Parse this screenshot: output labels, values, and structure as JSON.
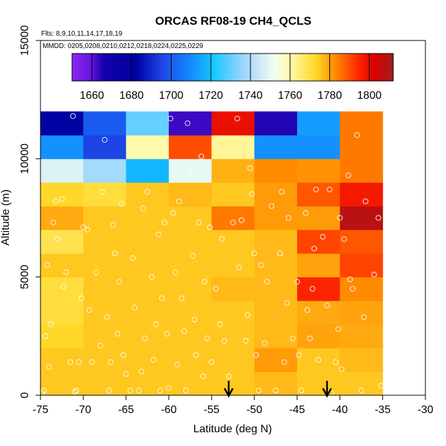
{
  "chart_data": {
    "type": "heatmap",
    "title": "ORCAS RF08-19 CH4_QCLS",
    "annotation_flights": "Flts: 8,9,10,11,14,17,18,19",
    "annotation_dates": "MMDD: 0205,0208,0210,0212,0218,0224,0225,0229",
    "xlabel": "Latitude (deg N)",
    "ylabel": "Altitude (m)",
    "xlim": [
      -75,
      -30
    ],
    "ylim": [
      0,
      15000
    ],
    "x_ticks": [
      -75,
      -70,
      -65,
      -60,
      -55,
      -50,
      -45,
      -40,
      -35,
      -30
    ],
    "y_ticks": [
      0,
      5000,
      10000,
      15000
    ],
    "colorbar": {
      "range": [
        1650,
        1812
      ],
      "ticks": [
        1660,
        1680,
        1700,
        1720,
        1740,
        1760,
        1780,
        1800
      ]
    },
    "x_bin_edges": [
      -75,
      -70,
      -65,
      -60,
      -55,
      -50,
      -45,
      -40,
      -35
    ],
    "y_bin_edges": [
      0,
      1000,
      2000,
      3000,
      4000,
      5000,
      6000,
      7000,
      8000,
      9000,
      10000,
      11000,
      12000
    ],
    "grid_values": [
      [
        1775,
        1775,
        1775,
        1775,
        1775,
        1777,
        1775,
        1775
      ],
      [
        1775,
        1775,
        1775,
        1775,
        1775,
        1781,
        1775,
        1777
      ],
      [
        1773,
        1775,
        1775,
        1775,
        1775,
        1777,
        1780,
        1779
      ],
      [
        1771,
        1775,
        1775,
        1775,
        1775,
        1777,
        1779,
        1780
      ],
      [
        1771,
        1775,
        1775,
        1775,
        1777,
        1777,
        1795,
        1783
      ],
      [
        1775,
        1775,
        1775,
        1775,
        1775,
        1777,
        1780,
        1791
      ],
      [
        1769,
        1775,
        1775,
        1775,
        1775,
        1777,
        1791,
        1789
      ],
      [
        1779,
        1775,
        1775,
        1775,
        1785,
        1781,
        1781,
        1808
      ],
      [
        1773,
        1771,
        1775,
        1777,
        1775,
        1781,
        1789,
        1797
      ],
      [
        1748,
        1738,
        1718,
        1750,
        1778,
        1783,
        1782,
        1785
      ],
      [
        1711,
        1695,
        1760,
        1790,
        1762,
        1711,
        1711,
        1785
      ],
      [
        1683,
        1700,
        1730,
        1663,
        1799,
        1665,
        1713,
        1785
      ]
    ],
    "sample_points": [
      [
        -74.8,
        100
      ],
      [
        -74.6,
        200
      ],
      [
        -74.4,
        2500
      ],
      [
        -74.2,
        5500
      ],
      [
        -74.0,
        1200
      ],
      [
        -73.8,
        3000
      ],
      [
        -73.5,
        7300
      ],
      [
        -73.2,
        8200
      ],
      [
        -73.0,
        6600
      ],
      [
        -72.5,
        8300
      ],
      [
        -72.3,
        4600
      ],
      [
        -72.0,
        5200
      ],
      [
        -71.5,
        1400
      ],
      [
        -71.2,
        11800
      ],
      [
        -71.0,
        150
      ],
      [
        -70.8,
        200
      ],
      [
        -70.5,
        1400
      ],
      [
        -70.2,
        4100
      ],
      [
        -70.0,
        7100
      ],
      [
        -69.5,
        7000
      ],
      [
        -69.3,
        3600
      ],
      [
        -69.0,
        1400
      ],
      [
        -68.5,
        5200
      ],
      [
        -68.0,
        2100
      ],
      [
        -67.8,
        8600
      ],
      [
        -67.5,
        10800
      ],
      [
        -67.2,
        3300
      ],
      [
        -67.0,
        200
      ],
      [
        -66.8,
        1400
      ],
      [
        -66.5,
        7200
      ],
      [
        -66.3,
        6000
      ],
      [
        -66.0,
        2600
      ],
      [
        -65.8,
        4800
      ],
      [
        -65.5,
        8100
      ],
      [
        -65.3,
        1700
      ],
      [
        -65.0,
        900
      ],
      [
        -64.5,
        200
      ],
      [
        -64.2,
        5800
      ],
      [
        -64.0,
        3700
      ],
      [
        -63.5,
        200
      ],
      [
        -63.2,
        1000
      ],
      [
        -63.0,
        7900
      ],
      [
        -62.8,
        2400
      ],
      [
        -62.5,
        8600
      ],
      [
        -62.0,
        5000
      ],
      [
        -61.8,
        1500
      ],
      [
        -61.5,
        3000
      ],
      [
        -61.2,
        6800
      ],
      [
        -61.0,
        200
      ],
      [
        -60.8,
        4100
      ],
      [
        -60.5,
        7300
      ],
      [
        -60.2,
        2600
      ],
      [
        -60.0,
        300
      ],
      [
        -59.8,
        11700
      ],
      [
        -59.5,
        7700
      ],
      [
        -59.2,
        5200
      ],
      [
        -59.0,
        1300
      ],
      [
        -58.8,
        8200
      ],
      [
        -58.5,
        4100
      ],
      [
        -58.2,
        2700
      ],
      [
        -58.0,
        200
      ],
      [
        -57.8,
        11500
      ],
      [
        -57.5,
        9400
      ],
      [
        -57.2,
        5900
      ],
      [
        -57.0,
        3200
      ],
      [
        -56.8,
        1700
      ],
      [
        -56.5,
        7300
      ],
      [
        -56.2,
        10100
      ],
      [
        -56.0,
        800
      ],
      [
        -55.8,
        4800
      ],
      [
        -55.5,
        2400
      ],
      [
        -55.2,
        7100
      ],
      [
        -55.0,
        1400
      ],
      [
        -54.5,
        4500
      ],
      [
        -54.0,
        3000
      ],
      [
        -53.8,
        6600
      ],
      [
        -53.5,
        2300
      ],
      [
        -53.0,
        800
      ],
      [
        -52.5,
        7300
      ],
      [
        -52.0,
        11700
      ],
      [
        -51.8,
        5400
      ],
      [
        -51.5,
        7400
      ],
      [
        -51.0,
        2300
      ],
      [
        -50.8,
        3400
      ],
      [
        -50.5,
        9600
      ],
      [
        -50.3,
        8500
      ],
      [
        -50.0,
        6000
      ],
      [
        -49.8,
        1700
      ],
      [
        -49.5,
        200
      ],
      [
        -49.2,
        5500
      ],
      [
        -48.8,
        2200
      ],
      [
        -48.5,
        4800
      ],
      [
        -48.0,
        8000
      ],
      [
        -47.5,
        200
      ],
      [
        -47.0,
        6000
      ],
      [
        -46.8,
        8600
      ],
      [
        -46.5,
        1400
      ],
      [
        -46.2,
        3900
      ],
      [
        -46.0,
        7500
      ],
      [
        -45.5,
        2400
      ],
      [
        -45.0,
        4800
      ],
      [
        -44.8,
        1700
      ],
      [
        -44.5,
        200
      ],
      [
        -44.0,
        7700
      ],
      [
        -43.8,
        3600
      ],
      [
        -43.5,
        2400
      ],
      [
        -43.2,
        4500
      ],
      [
        -43.0,
        6200
      ],
      [
        -42.8,
        8700
      ],
      [
        -42.5,
        1500
      ],
      [
        -42.0,
        6700
      ],
      [
        -41.5,
        3800
      ],
      [
        -41.2,
        8700
      ],
      [
        -41.0,
        100
      ],
      [
        -40.5,
        1400
      ],
      [
        -40.2,
        2800
      ],
      [
        -40.0,
        7500
      ],
      [
        -39.8,
        1100
      ],
      [
        -39.5,
        6600
      ],
      [
        -39.0,
        9300
      ],
      [
        -38.8,
        4900
      ],
      [
        -38.5,
        4500
      ],
      [
        -38.0,
        11000
      ],
      [
        -37.5,
        200
      ],
      [
        -37.2,
        3300
      ],
      [
        -37.0,
        8200
      ],
      [
        -36.0,
        5100
      ],
      [
        -35.5,
        7500
      ],
      [
        -35.2,
        400
      ]
    ],
    "arrow_latitudes": [
      -53,
      -41.5
    ]
  }
}
